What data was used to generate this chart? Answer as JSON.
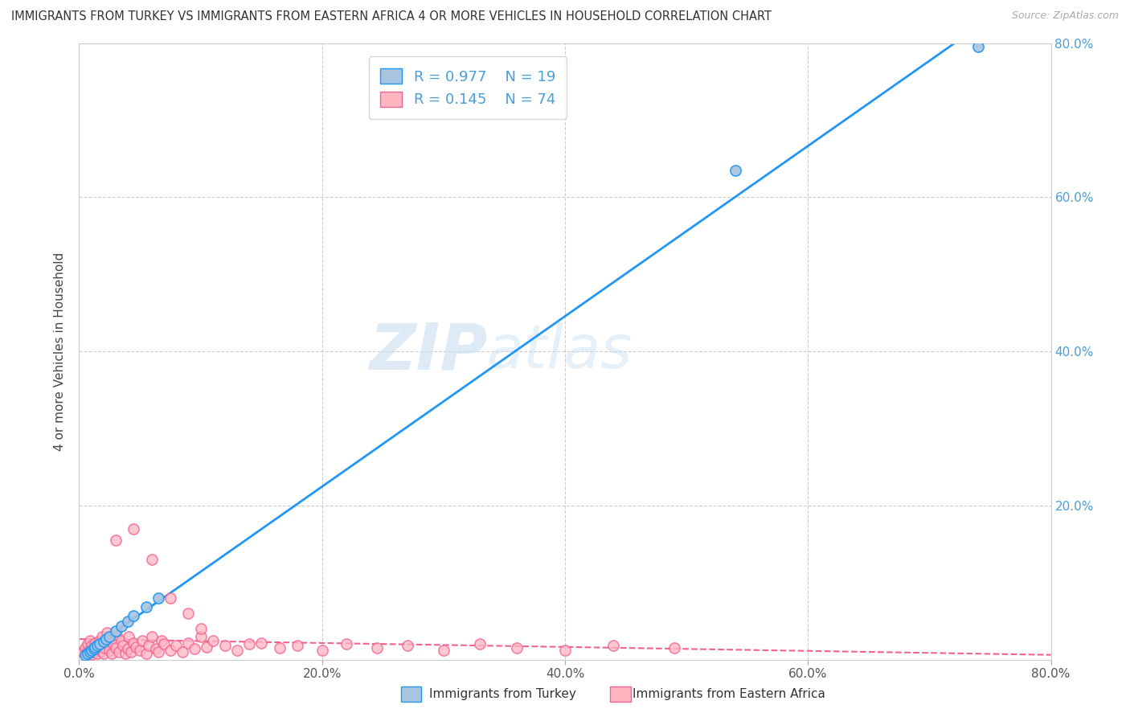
{
  "title": "IMMIGRANTS FROM TURKEY VS IMMIGRANTS FROM EASTERN AFRICA 4 OR MORE VEHICLES IN HOUSEHOLD CORRELATION CHART",
  "source": "Source: ZipAtlas.com",
  "ylabel": "4 or more Vehicles in Household",
  "xlim": [
    0.0,
    0.8
  ],
  "ylim": [
    0.0,
    0.8
  ],
  "xticks": [
    0.0,
    0.2,
    0.4,
    0.6,
    0.8
  ],
  "yticks": [
    0.2,
    0.4,
    0.6,
    0.8
  ],
  "xticklabels": [
    "0.0%",
    "20.0%",
    "40.0%",
    "60.0%",
    "80.0%"
  ],
  "yticklabels_right": [
    "20.0%",
    "40.0%",
    "60.0%",
    "80.0%"
  ],
  "legend_labels": [
    "Immigrants from Turkey",
    "Immigrants from Eastern Africa"
  ],
  "turkey_color": "#a8c4e0",
  "turkey_line_color": "#2196f3",
  "eastern_africa_color": "#ffb6c1",
  "eastern_africa_line_color": "#f06292",
  "R_turkey": 0.977,
  "N_turkey": 19,
  "R_eastern_africa": 0.145,
  "N_eastern_africa": 74,
  "watermark_zip": "ZIP",
  "watermark_atlas": "atlas",
  "background_color": "#ffffff",
  "grid_color": "#cccccc",
  "tick_label_color": "#555555",
  "right_tick_color": "#4a9fd4",
  "turkey_scatter_x": [
    0.005,
    0.007,
    0.009,
    0.01,
    0.012,
    0.013,
    0.015,
    0.017,
    0.02,
    0.022,
    0.025,
    0.03,
    0.035,
    0.04,
    0.045,
    0.055,
    0.065,
    0.54,
    0.74
  ],
  "turkey_scatter_y": [
    0.006,
    0.008,
    0.01,
    0.012,
    0.014,
    0.016,
    0.018,
    0.021,
    0.024,
    0.027,
    0.03,
    0.037,
    0.043,
    0.05,
    0.057,
    0.068,
    0.08,
    0.635,
    0.795
  ],
  "eastern_africa_scatter_x": [
    0.003,
    0.005,
    0.006,
    0.007,
    0.008,
    0.009,
    0.01,
    0.01,
    0.012,
    0.013,
    0.014,
    0.015,
    0.016,
    0.017,
    0.018,
    0.019,
    0.02,
    0.021,
    0.022,
    0.023,
    0.025,
    0.026,
    0.027,
    0.028,
    0.03,
    0.031,
    0.033,
    0.035,
    0.036,
    0.038,
    0.04,
    0.041,
    0.043,
    0.045,
    0.047,
    0.05,
    0.052,
    0.055,
    0.057,
    0.06,
    0.063,
    0.065,
    0.068,
    0.07,
    0.075,
    0.08,
    0.085,
    0.09,
    0.095,
    0.1,
    0.105,
    0.11,
    0.12,
    0.13,
    0.14,
    0.15,
    0.165,
    0.18,
    0.2,
    0.22,
    0.245,
    0.27,
    0.3,
    0.33,
    0.36,
    0.4,
    0.44,
    0.49,
    0.03,
    0.045,
    0.06,
    0.075,
    0.09,
    0.1
  ],
  "eastern_africa_scatter_y": [
    0.01,
    0.015,
    0.008,
    0.02,
    0.012,
    0.025,
    0.007,
    0.018,
    0.01,
    0.022,
    0.014,
    0.008,
    0.019,
    0.025,
    0.011,
    0.03,
    0.008,
    0.015,
    0.022,
    0.035,
    0.012,
    0.028,
    0.008,
    0.02,
    0.015,
    0.032,
    0.01,
    0.025,
    0.018,
    0.008,
    0.014,
    0.03,
    0.01,
    0.022,
    0.016,
    0.012,
    0.025,
    0.008,
    0.018,
    0.03,
    0.014,
    0.01,
    0.025,
    0.02,
    0.012,
    0.018,
    0.01,
    0.022,
    0.014,
    0.03,
    0.016,
    0.025,
    0.018,
    0.012,
    0.02,
    0.022,
    0.015,
    0.018,
    0.012,
    0.02,
    0.015,
    0.018,
    0.012,
    0.02,
    0.015,
    0.012,
    0.018,
    0.015,
    0.155,
    0.17,
    0.13,
    0.08,
    0.06,
    0.04
  ]
}
